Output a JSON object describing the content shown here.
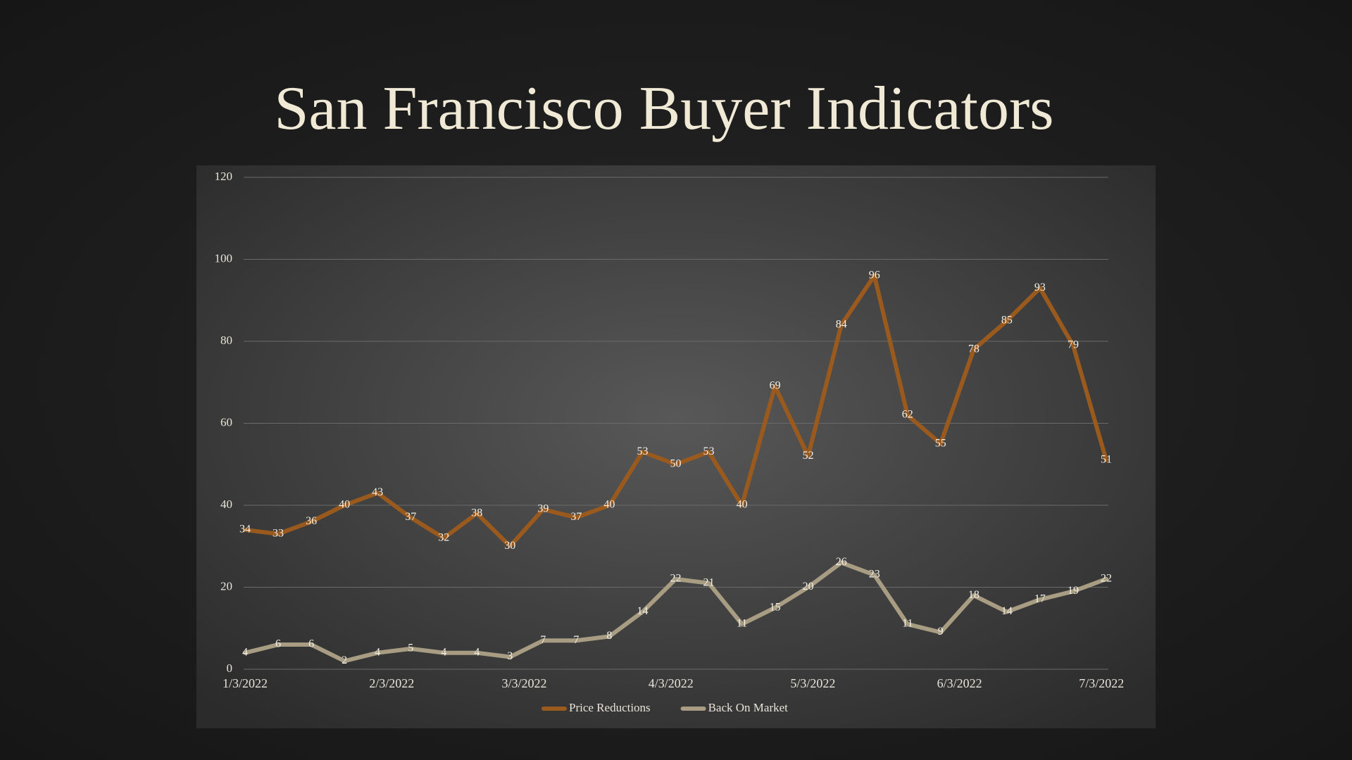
{
  "chart_data": {
    "type": "line",
    "title": "San Francisco Buyer Indicators",
    "x": [
      "2022-01-03",
      "2022-01-10",
      "2022-01-17",
      "2022-01-24",
      "2022-01-31",
      "2022-02-07",
      "2022-02-14",
      "2022-02-21",
      "2022-02-28",
      "2022-03-07",
      "2022-03-14",
      "2022-03-21",
      "2022-03-28",
      "2022-04-04",
      "2022-04-11",
      "2022-04-18",
      "2022-04-25",
      "2022-05-02",
      "2022-05-09",
      "2022-05-16",
      "2022-05-23",
      "2022-05-30",
      "2022-06-06",
      "2022-06-13",
      "2022-06-20",
      "2022-06-27",
      "2022-07-04"
    ],
    "series": [
      {
        "name": "Price Reductions",
        "color": "#9a5a1e",
        "values": [
          34,
          33,
          36,
          40,
          43,
          37,
          32,
          38,
          30,
          39,
          37,
          40,
          53,
          50,
          53,
          40,
          69,
          52,
          84,
          96,
          62,
          55,
          78,
          85,
          93,
          79,
          51
        ]
      },
      {
        "name": "Back On Market",
        "color": "#a89d83",
        "values": [
          4,
          6,
          6,
          2,
          4,
          5,
          4,
          4,
          3,
          7,
          7,
          8,
          14,
          22,
          21,
          11,
          15,
          20,
          26,
          23,
          11,
          9,
          18,
          14,
          17,
          19,
          22
        ]
      }
    ],
    "xlim": [
      "2022-01-03",
      "2022-07-04"
    ],
    "xticks": [
      {
        "value": "2022-01-03",
        "label": "1/3/2022"
      },
      {
        "value": "2022-02-03",
        "label": "2/3/2022"
      },
      {
        "value": "2022-03-03",
        "label": "3/3/2022"
      },
      {
        "value": "2022-04-03",
        "label": "4/3/2022"
      },
      {
        "value": "2022-05-03",
        "label": "5/3/2022"
      },
      {
        "value": "2022-06-03",
        "label": "6/3/2022"
      },
      {
        "value": "2022-07-03",
        "label": "7/3/2022"
      }
    ],
    "ylim": [
      0,
      120
    ],
    "yticks": [
      0,
      20,
      40,
      60,
      80,
      100,
      120
    ],
    "grid": true,
    "legend": "bottom",
    "data_labels": true
  }
}
